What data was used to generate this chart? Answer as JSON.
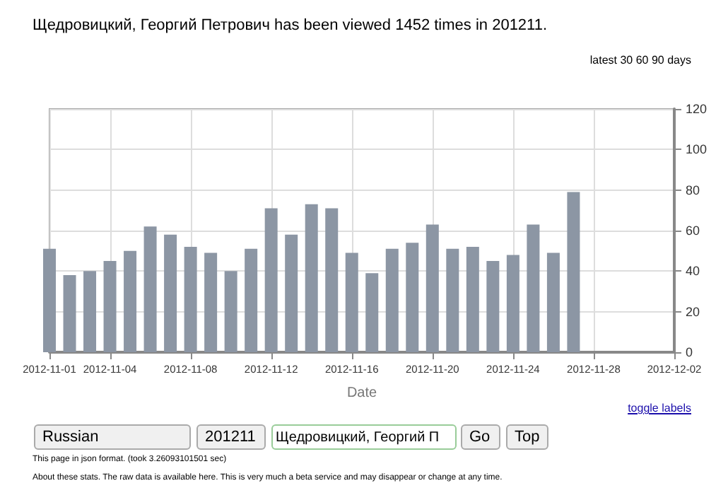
{
  "chart_data": {
    "type": "bar",
    "title": "Щедровицкий, Георгий Петрович has been viewed 1452 times in 201211.",
    "xlabel": "Date",
    "x": [
      "2012-11-01",
      "2012-11-02",
      "2012-11-03",
      "2012-11-04",
      "2012-11-05",
      "2012-11-06",
      "2012-11-07",
      "2012-11-08",
      "2012-11-09",
      "2012-11-10",
      "2012-11-11",
      "2012-11-12",
      "2012-11-13",
      "2012-11-14",
      "2012-11-15",
      "2012-11-16",
      "2012-11-17",
      "2012-11-18",
      "2012-11-19",
      "2012-11-20",
      "2012-11-21",
      "2012-11-22",
      "2012-11-23",
      "2012-11-24",
      "2012-11-25",
      "2012-11-26",
      "2012-11-27"
    ],
    "values": [
      51,
      38,
      40,
      45,
      50,
      62,
      58,
      52,
      49,
      40,
      51,
      71,
      58,
      73,
      71,
      49,
      39,
      51,
      54,
      63,
      51,
      52,
      45,
      48,
      63,
      49,
      79
    ],
    "color": "#8c96a4",
    "xlim": [
      "2012-11-01",
      "2012-12-02"
    ],
    "xticks": [
      "2012-11-01",
      "2012-11-04",
      "2012-11-08",
      "2012-11-12",
      "2012-11-16",
      "2012-11-20",
      "2012-11-24",
      "2012-11-28",
      "2012-12-02"
    ],
    "ylim": [
      0,
      120
    ],
    "yticks": [
      0,
      20,
      40,
      60,
      80,
      100,
      120
    ],
    "grid": true,
    "annotations": [
      "latest 30 60 90 days",
      "toggle labels",
      "Russian",
      "201211",
      "Щедровицкий, Георгий П",
      "Go",
      "Top",
      "This page in json format.",
      "(took 3.26093101501 sec)",
      "About these stats. The raw data is available here. This is very much a beta service and may disappear or change at any time."
    ]
  }
}
